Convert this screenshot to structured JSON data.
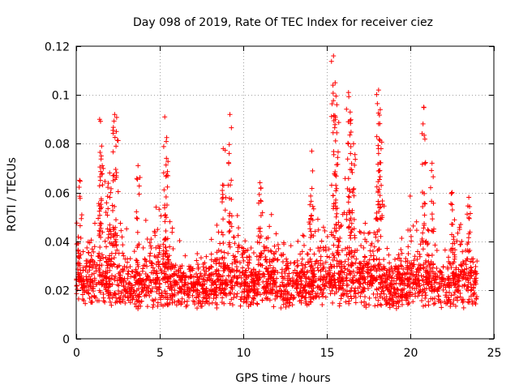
{
  "chart_data": {
    "type": "scatter",
    "title": "Day 098 of 2019, Rate Of TEC Index for receiver ciez",
    "xlabel": "GPS time / hours",
    "ylabel": "ROTI / TECUs",
    "xlim": [
      0,
      25
    ],
    "ylim": [
      0,
      0.12
    ],
    "xticks": [
      0,
      5,
      10,
      15,
      20,
      25
    ],
    "xtick_labels": [
      "0",
      "5",
      "10",
      "15",
      "20",
      "25"
    ],
    "yticks": [
      0,
      0.02,
      0.04,
      0.06,
      0.08,
      0.1,
      0.12
    ],
    "ytick_labels": [
      "0",
      "0.02",
      "0.04",
      "0.06",
      "0.08",
      "0.1",
      "0.12"
    ],
    "grid": true,
    "marker": "+",
    "series": [
      {
        "name": "ROTI",
        "color": "#ff0000",
        "x_range": [
          0,
          24
        ],
        "note": "dense point cloud; baseline mostly 0.005-0.035 TECU",
        "peaks": [
          {
            "x": 0.2,
            "y": 0.065
          },
          {
            "x": 1.4,
            "y": 0.09
          },
          {
            "x": 1.5,
            "y": 0.075
          },
          {
            "x": 2.3,
            "y": 0.092
          },
          {
            "x": 2.4,
            "y": 0.085
          },
          {
            "x": 2.0,
            "y": 0.068
          },
          {
            "x": 3.7,
            "y": 0.071
          },
          {
            "x": 5.3,
            "y": 0.091
          },
          {
            "x": 5.4,
            "y": 0.074
          },
          {
            "x": 9.2,
            "y": 0.092
          },
          {
            "x": 8.8,
            "y": 0.078
          },
          {
            "x": 11.0,
            "y": 0.064
          },
          {
            "x": 14.1,
            "y": 0.077
          },
          {
            "x": 15.4,
            "y": 0.116
          },
          {
            "x": 15.5,
            "y": 0.105
          },
          {
            "x": 15.6,
            "y": 0.096
          },
          {
            "x": 16.3,
            "y": 0.101
          },
          {
            "x": 16.4,
            "y": 0.093
          },
          {
            "x": 16.6,
            "y": 0.08
          },
          {
            "x": 18.1,
            "y": 0.102
          },
          {
            "x": 18.2,
            "y": 0.094
          },
          {
            "x": 18.1,
            "y": 0.076
          },
          {
            "x": 20.8,
            "y": 0.095
          },
          {
            "x": 21.3,
            "y": 0.072
          },
          {
            "x": 22.5,
            "y": 0.06
          },
          {
            "x": 23.5,
            "y": 0.058
          }
        ]
      }
    ]
  }
}
